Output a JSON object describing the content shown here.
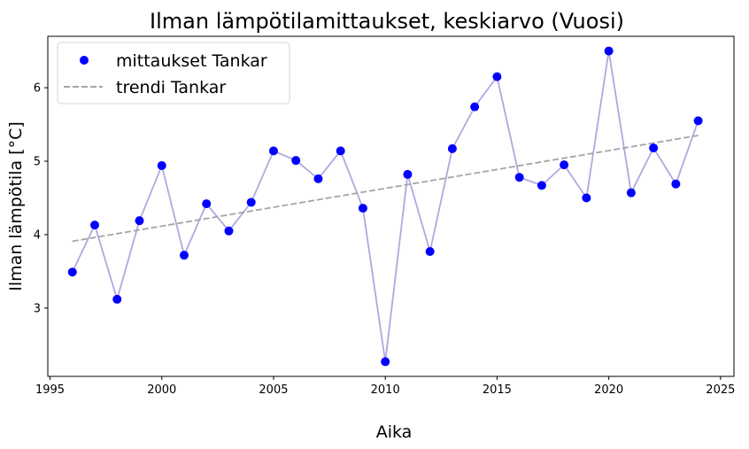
{
  "chart_data": {
    "type": "scatter",
    "title": "Ilman lämpötilamittaukset, keskiarvo (Vuosi)",
    "xlabel": "Aika",
    "ylabel": "Ilman lämpötila [°C]",
    "xlim": [
      1994.9,
      2025.6
    ],
    "ylim": [
      2.07,
      6.7
    ],
    "xticks": [
      1995,
      2000,
      2005,
      2010,
      2015,
      2020,
      2025
    ],
    "yticks": [
      3,
      4,
      5,
      6
    ],
    "grid": false,
    "legend_position": "top-left",
    "series": [
      {
        "name": "mittaukset Tankar",
        "type": "scatter",
        "color": "#0000ff",
        "connect_line_color": "#b0a8e0",
        "x": [
          1996,
          1997,
          1998,
          1999,
          2000,
          2001,
          2002,
          2003,
          2004,
          2005,
          2006,
          2007,
          2008,
          2009,
          2010,
          2011,
          2012,
          2013,
          2014,
          2015,
          2016,
          2017,
          2018,
          2019,
          2020,
          2021,
          2022,
          2023,
          2024
        ],
        "y": [
          3.49,
          4.13,
          3.12,
          4.19,
          4.94,
          3.72,
          4.42,
          4.05,
          4.44,
          5.14,
          5.01,
          4.76,
          5.14,
          4.36,
          2.27,
          4.82,
          3.77,
          5.17,
          5.74,
          6.15,
          4.78,
          4.67,
          4.95,
          4.5,
          6.5,
          4.57,
          5.18,
          4.69,
          5.55
        ]
      },
      {
        "name": "trendi Tankar",
        "type": "line",
        "style": "dashed",
        "color": "#a5a5a5",
        "x": [
          1996,
          2024
        ],
        "y": [
          3.91,
          5.35
        ]
      }
    ]
  }
}
